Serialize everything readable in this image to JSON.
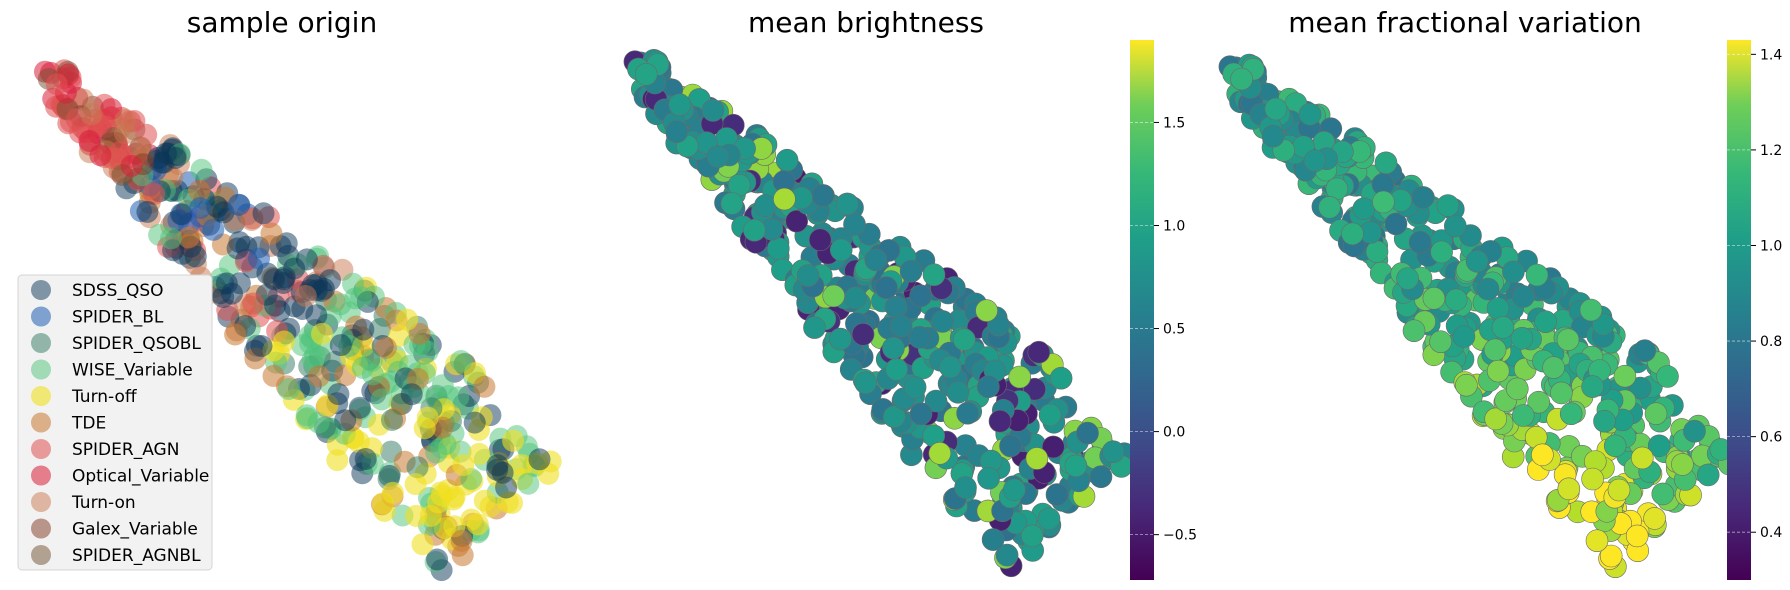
{
  "chart_data": [
    {
      "type": "scatter",
      "title": "sample origin",
      "legend": {
        "placement": "lower-left",
        "entries": [
          {
            "name": "SDSS_QSO",
            "color": "#0b3558",
            "alpha": 0.5
          },
          {
            "name": "SPIDER_BL",
            "color": "#1f5fb4",
            "alpha": 0.55
          },
          {
            "name": "SPIDER_QSOBL",
            "color": "#2f7a60",
            "alpha": 0.5
          },
          {
            "name": "WISE_Variable",
            "color": "#4ec47a",
            "alpha": 0.5
          },
          {
            "name": "Turn-off",
            "color": "#f0e020",
            "alpha": 0.6
          },
          {
            "name": "TDE",
            "color": "#c87830",
            "alpha": 0.55
          },
          {
            "name": "SPIDER_AGN",
            "color": "#e05050",
            "alpha": 0.55
          },
          {
            "name": "Optical_Variable",
            "color": "#d81e38",
            "alpha": 0.55
          },
          {
            "name": "Turn-on",
            "color": "#c87850",
            "alpha": 0.5
          },
          {
            "name": "Galex_Variable",
            "color": "#803820",
            "alpha": 0.5
          },
          {
            "name": "SPIDER_AGNBL",
            "color": "#705030",
            "alpha": 0.5
          }
        ]
      },
      "grid": false,
      "axes_visible": false
    },
    {
      "type": "scatter",
      "title": "mean brightness",
      "colormap": "viridis",
      "colorbar": {
        "range": [
          -0.72,
          1.9
        ],
        "ticks": [
          -0.5,
          0.0,
          0.5,
          1.0,
          1.5
        ],
        "tick_labels": [
          "−0.5",
          "0.0",
          "0.5",
          "1.0",
          "1.5"
        ]
      },
      "value_mix": {
        "low": -0.5,
        "mid": 0.45,
        "high": 1.55,
        "dominant": 0.55
      },
      "grid": false,
      "axes_visible": false
    },
    {
      "type": "scatter",
      "title": "mean fractional variation",
      "colormap": "viridis",
      "colorbar": {
        "range": [
          0.3,
          1.43
        ],
        "ticks": [
          0.4,
          0.6,
          0.8,
          1.0,
          1.2,
          1.4
        ],
        "tick_labels": [
          "0.4",
          "0.6",
          "0.8",
          "1.0",
          "1.2",
          "1.4"
        ]
      },
      "value_mix": {
        "low": 0.55,
        "mid": 0.85,
        "high": 1.3,
        "dominant": 0.9
      },
      "grid": false,
      "axes_visible": false
    }
  ]
}
